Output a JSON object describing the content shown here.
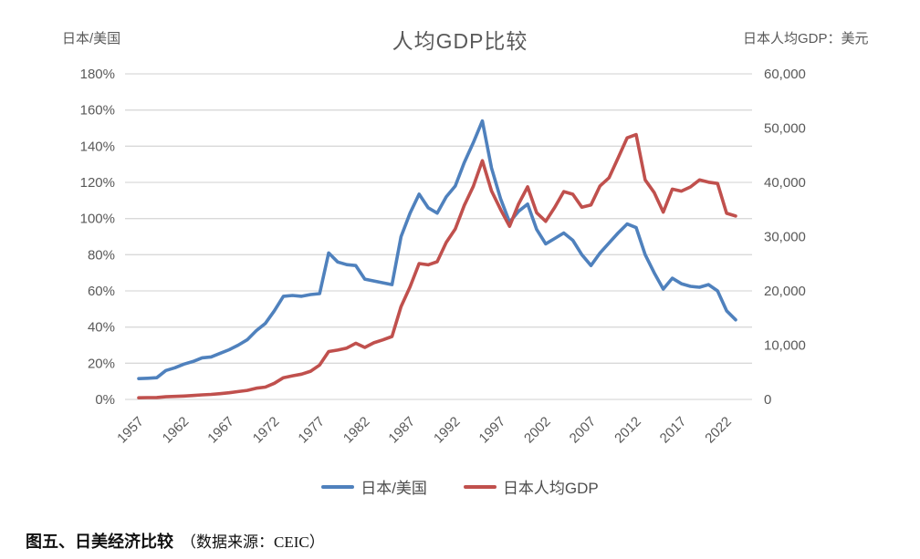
{
  "figure": {
    "title": "人均GDP比较",
    "left_axis_title": "日本/美国",
    "right_axis_title": "日本人均GDP：美元"
  },
  "legend": {
    "items": [
      {
        "label": "日本/美国",
        "color": "#4F81BD"
      },
      {
        "label": "日本人均GDP",
        "color": "#C0504D"
      }
    ]
  },
  "caption": {
    "label_bold": "图五、日美经济比较",
    "source": "（数据来源：CEIC）"
  },
  "colors": {
    "grid": "#D9D9D9",
    "tick_text": "#595959",
    "blue": "#4F81BD",
    "red": "#C0504D"
  },
  "chart_data": {
    "type": "line",
    "title": "人均GDP比较",
    "grid": "horizontal",
    "legend_position": "bottom",
    "x": [
      1957,
      1958,
      1959,
      1960,
      1961,
      1962,
      1963,
      1964,
      1965,
      1966,
      1967,
      1968,
      1969,
      1970,
      1971,
      1972,
      1973,
      1974,
      1975,
      1976,
      1977,
      1978,
      1979,
      1980,
      1981,
      1982,
      1983,
      1984,
      1985,
      1986,
      1987,
      1988,
      1989,
      1990,
      1991,
      1992,
      1993,
      1994,
      1995,
      1996,
      1997,
      1998,
      1999,
      2000,
      2001,
      2002,
      2003,
      2004,
      2005,
      2006,
      2007,
      2008,
      2009,
      2010,
      2011,
      2012,
      2013,
      2014,
      2015,
      2016,
      2017,
      2018,
      2019,
      2020,
      2021,
      2022,
      2023
    ],
    "series": [
      {
        "name": "日本/美国",
        "axis": "left",
        "unit": "percent",
        "color": "#4F81BD",
        "values": [
          11.5,
          11.7,
          12,
          16,
          17.5,
          19.5,
          21,
          23,
          23.5,
          25.5,
          27.5,
          30,
          33,
          38,
          42,
          49,
          57,
          57.5,
          57,
          58,
          58.5,
          81,
          76,
          74.5,
          74,
          66.5,
          65.5,
          64.5,
          63.5,
          90,
          103,
          113.5,
          106,
          103,
          112,
          118,
          131,
          142,
          154,
          128,
          111,
          98,
          104,
          108,
          94,
          86,
          89,
          92,
          88,
          80,
          74,
          81,
          86.5,
          92,
          97,
          95,
          80,
          70,
          61,
          67,
          64,
          62.5,
          62,
          63.5,
          60,
          49,
          44
        ]
      },
      {
        "name": "日本人均GDP",
        "axis": "right",
        "unit": "USD",
        "color": "#C0504D",
        "values": [
          310,
          330,
          360,
          480,
          560,
          630,
          720,
          840,
          920,
          1060,
          1230,
          1450,
          1670,
          2060,
          2270,
          2970,
          4000,
          4350,
          4660,
          5200,
          6330,
          8820,
          9100,
          9470,
          10360,
          9580,
          10430,
          10980,
          11590,
          17110,
          20750,
          25050,
          24810,
          25370,
          28920,
          31410,
          35770,
          39270,
          44000,
          38440,
          35020,
          31900,
          36030,
          39170,
          34410,
          32830,
          35390,
          38300,
          37820,
          35430,
          35850,
          39340,
          40860,
          44510,
          48200,
          48800,
          40450,
          38110,
          34520,
          38760,
          38390,
          39160,
          40460,
          40040,
          39800,
          34300,
          33800
        ]
      }
    ],
    "left_axis": {
      "min": 0,
      "max": 180,
      "ticks": [
        "180%",
        "160%",
        "140%",
        "120%",
        "100%",
        "80%",
        "60%",
        "40%",
        "20%",
        "0%"
      ]
    },
    "right_axis": {
      "min": 0,
      "max": 60000,
      "ticks": [
        "60,000",
        "50,000",
        "40,000",
        "30,000",
        "20,000",
        "10,000",
        "0"
      ]
    },
    "x_axis": {
      "tick_years": [
        1957,
        1962,
        1967,
        1972,
        1977,
        1982,
        1987,
        1992,
        1997,
        2002,
        2007,
        2012,
        2017,
        2022
      ],
      "labels_rotation_degrees": 45
    }
  }
}
